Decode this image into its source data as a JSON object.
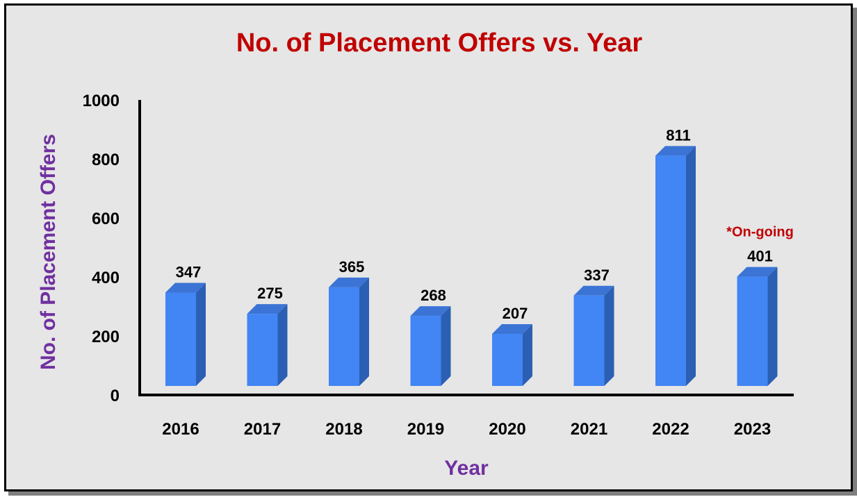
{
  "colors": {
    "background": "#e6e6e6",
    "title": "#c00000",
    "axis_title": "#7030a0",
    "bar_front": "#4285f4",
    "bar_side": "#2b5fb3",
    "bar_top": "#3b74d4",
    "note": "#c00000"
  },
  "chart_data": {
    "type": "bar",
    "title": "No. of Placement Offers vs. Year",
    "xlabel": "Year",
    "ylabel": "No. of Placement Offers",
    "categories": [
      "2016",
      "2017",
      "2018",
      "2019",
      "2020",
      "2021",
      "2022",
      "2023"
    ],
    "values": [
      347,
      275,
      365,
      268,
      207,
      337,
      811,
      401
    ],
    "ylim": [
      0,
      1000
    ],
    "yticks": [
      0,
      200,
      400,
      600,
      800,
      1000
    ],
    "grid": false,
    "legend": "none",
    "annotations": [
      {
        "category": "2023",
        "text": "*On-going"
      }
    ]
  }
}
